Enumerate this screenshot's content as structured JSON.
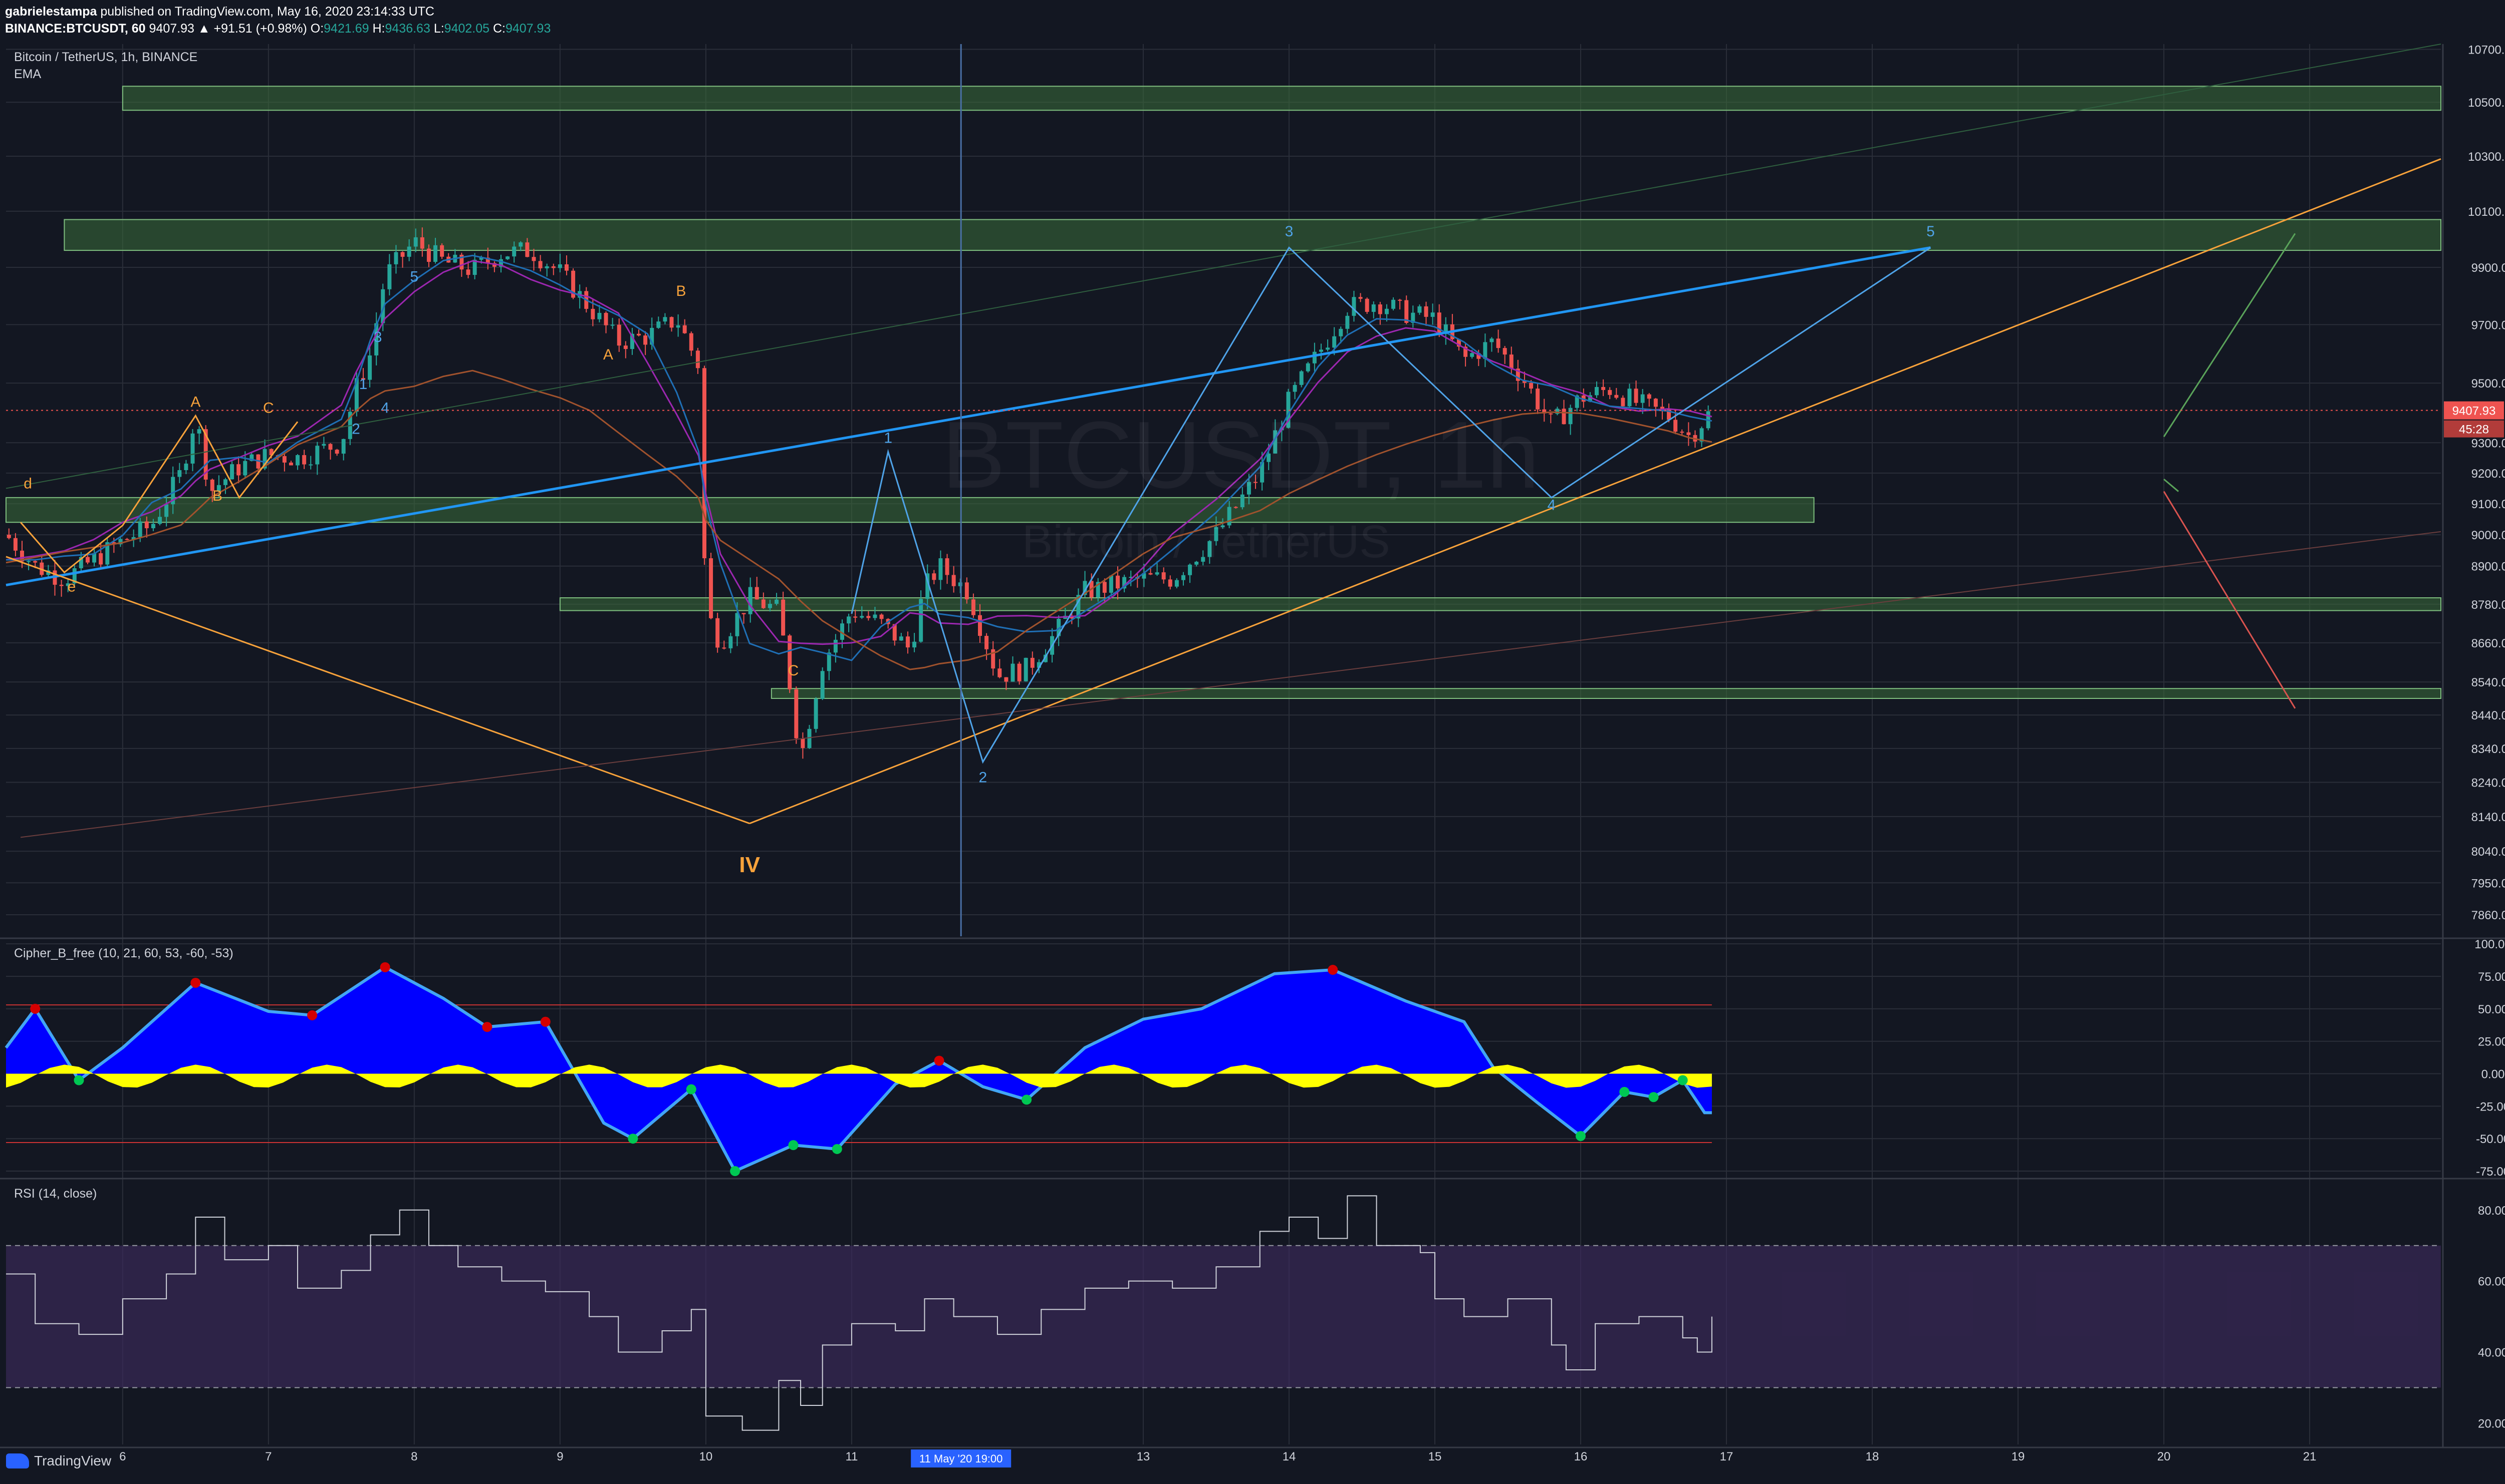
{
  "header": {
    "author": "gabrielestampa",
    "published_text": "published on TradingView.com, May 16, 2020 23:14:33 UTC",
    "symbol_line": "BINANCE:BTCUSDT, 60",
    "change": "9407.93 ▲ +91.51 (+0.98%)",
    "o_label": "O:",
    "o_value": "9421.69",
    "h_label": "H:",
    "h_value": "9436.63",
    "l_label": "L:",
    "l_value": "9402.05",
    "c_label": "C:",
    "c_value": "9407.93"
  },
  "main_pane": {
    "title": "Bitcoin / TetherUS, 1h, BINANCE",
    "indicator": "EMA",
    "watermark_symbol": "BTCUSDT, 1h",
    "watermark_name": "Bitcoin / TetherUS",
    "last_price": "9407.93",
    "countdown": "45:28"
  },
  "cipher_pane": {
    "title": "Cipher_B_free (10, 21, 60, 53, -60, -53)"
  },
  "rsi_pane": {
    "title": "RSI (14, close)"
  },
  "time_cursor": "11 May '20   19:00",
  "footer": {
    "brand": "TradingView"
  },
  "colors": {
    "background": "#131722",
    "grid": "#2a2e39",
    "candle_up": "#26a69a",
    "candle_down": "#ef5350",
    "zone_fill": "#3b6e3b",
    "wave_orange": "#f7a23b",
    "wave_blue": "#4fa3e8",
    "wave_blue_bright": "#2196f3",
    "ema_purple": "#9c27b0",
    "ema_brown": "#a0522d",
    "cipher_blue": "#0000ff",
    "cipher_yellow": "#ffff00",
    "rsi_band": "#3c2a5c"
  },
  "chart_data": [
    {
      "type": "candlestick",
      "title": "Bitcoin / TetherUS, 1h, BINANCE",
      "x_tick_labels": [
        "6",
        "7",
        "8",
        "9",
        "10",
        "11",
        "13",
        "14",
        "15",
        "16",
        "17",
        "18",
        "19",
        "20",
        "21"
      ],
      "x_domain_days": [
        5.2,
        21.9
      ],
      "y_tick_labels": [
        "10700.00",
        "10500.00",
        "10300.00",
        "10100.00",
        "9900.00",
        "9700.00",
        "9500.00",
        "9300.00",
        "9200.00",
        "9100.00",
        "9000.00",
        "8900.00",
        "8780.00",
        "8660.00",
        "8540.00",
        "8440.00",
        "8340.00",
        "8240.00",
        "8140.00",
        "8040.00",
        "7950.00",
        "7860.00"
      ],
      "ylim": [
        7800,
        10720
      ],
      "y_scale": "log",
      "grid": true,
      "close_series": [
        {
          "day": 5.2,
          "price": 9000
        },
        {
          "day": 5.4,
          "price": 8900
        },
        {
          "day": 5.6,
          "price": 8860
        },
        {
          "day": 5.8,
          "price": 8920
        },
        {
          "day": 6.0,
          "price": 8980
        },
        {
          "day": 6.2,
          "price": 9030
        },
        {
          "day": 6.4,
          "price": 9200
        },
        {
          "day": 6.5,
          "price": 9390
        },
        {
          "day": 6.6,
          "price": 9140
        },
        {
          "day": 6.8,
          "price": 9220
        },
        {
          "day": 7.0,
          "price": 9260
        },
        {
          "day": 7.2,
          "price": 9250
        },
        {
          "day": 7.5,
          "price": 9300
        },
        {
          "day": 7.6,
          "price": 9480
        },
        {
          "day": 7.7,
          "price": 9600
        },
        {
          "day": 7.8,
          "price": 9870
        },
        {
          "day": 8.0,
          "price": 9990
        },
        {
          "day": 8.2,
          "price": 9920
        },
        {
          "day": 8.4,
          "price": 9890
        },
        {
          "day": 8.6,
          "price": 9950
        },
        {
          "day": 8.8,
          "price": 9960
        },
        {
          "day": 9.0,
          "price": 9880
        },
        {
          "day": 9.2,
          "price": 9760
        },
        {
          "day": 9.4,
          "price": 9640
        },
        {
          "day": 9.6,
          "price": 9660
        },
        {
          "day": 9.8,
          "price": 9720
        },
        {
          "day": 9.95,
          "price": 9560
        },
        {
          "day": 10.0,
          "price": 8760
        },
        {
          "day": 10.1,
          "price": 8660
        },
        {
          "day": 10.3,
          "price": 8800
        },
        {
          "day": 10.5,
          "price": 8760
        },
        {
          "day": 10.65,
          "price": 8310
        },
        {
          "day": 10.8,
          "price": 8600
        },
        {
          "day": 11.0,
          "price": 8760
        },
        {
          "day": 11.2,
          "price": 8720
        },
        {
          "day": 11.4,
          "price": 8640
        },
        {
          "day": 11.5,
          "price": 8830
        },
        {
          "day": 11.6,
          "price": 8900
        },
        {
          "day": 11.8,
          "price": 8820
        },
        {
          "day": 12.0,
          "price": 8560
        },
        {
          "day": 12.2,
          "price": 8580
        },
        {
          "day": 12.4,
          "price": 8690
        },
        {
          "day": 12.6,
          "price": 8820
        },
        {
          "day": 12.8,
          "price": 8840
        },
        {
          "day": 13.0,
          "price": 8860
        },
        {
          "day": 13.2,
          "price": 8860
        },
        {
          "day": 13.5,
          "price": 9000
        },
        {
          "day": 13.8,
          "price": 9200
        },
        {
          "day": 14.0,
          "price": 9440
        },
        {
          "day": 14.2,
          "price": 9600
        },
        {
          "day": 14.4,
          "price": 9760
        },
        {
          "day": 14.6,
          "price": 9780
        },
        {
          "day": 14.8,
          "price": 9740
        },
        {
          "day": 15.0,
          "price": 9720
        },
        {
          "day": 15.2,
          "price": 9580
        },
        {
          "day": 15.4,
          "price": 9640
        },
        {
          "day": 15.6,
          "price": 9520
        },
        {
          "day": 15.8,
          "price": 9360
        },
        {
          "day": 16.0,
          "price": 9450
        },
        {
          "day": 16.2,
          "price": 9480
        },
        {
          "day": 16.4,
          "price": 9430
        },
        {
          "day": 16.6,
          "price": 9390
        },
        {
          "day": 16.75,
          "price": 9320
        },
        {
          "day": 16.9,
          "price": 9408
        }
      ],
      "horizontal_zones": [
        {
          "from_day": 6.0,
          "to_day": 21.9,
          "low": 10470,
          "high": 10560
        },
        {
          "from_day": 5.6,
          "to_day": 21.9,
          "low": 9960,
          "high": 10070
        },
        {
          "from_day": 5.2,
          "to_day": 17.6,
          "low": 9040,
          "high": 9120
        },
        {
          "from_day": 9.0,
          "to_day": 21.9,
          "low": 8760,
          "high": 8800
        },
        {
          "from_day": 10.45,
          "to_day": 21.9,
          "low": 8490,
          "high": 8520
        }
      ],
      "annotations": [
        "d",
        "e",
        "A",
        "B",
        "C",
        "1",
        "2",
        "3",
        "4",
        "5",
        "A",
        "B",
        "C",
        "IV",
        "1",
        "2",
        "3",
        "4",
        "5"
      ]
    },
    {
      "type": "area",
      "title": "Cipher_B_free (10, 21, 60, 53, -60, -53)",
      "y_tick_labels": [
        "100.00",
        "75.00",
        "50.00",
        "25.00",
        "0.00",
        "-25.00",
        "-50.00",
        "-75.00"
      ],
      "ylim": [
        -80,
        102
      ],
      "wave": [
        {
          "day": 5.2,
          "value": 20
        },
        {
          "day": 5.4,
          "value": 50
        },
        {
          "day": 5.7,
          "value": -5
        },
        {
          "day": 6.0,
          "value": 20
        },
        {
          "day": 6.5,
          "value": 70
        },
        {
          "day": 7.0,
          "value": 48
        },
        {
          "day": 7.3,
          "value": 45
        },
        {
          "day": 7.8,
          "value": 82
        },
        {
          "day": 8.2,
          "value": 58
        },
        {
          "day": 8.5,
          "value": 36
        },
        {
          "day": 8.9,
          "value": 40
        },
        {
          "day": 9.3,
          "value": -38
        },
        {
          "day": 9.5,
          "value": -50
        },
        {
          "day": 9.9,
          "value": -12
        },
        {
          "day": 10.2,
          "value": -75
        },
        {
          "day": 10.6,
          "value": -55
        },
        {
          "day": 10.9,
          "value": -58
        },
        {
          "day": 11.3,
          "value": -8
        },
        {
          "day": 11.6,
          "value": 10
        },
        {
          "day": 11.9,
          "value": -10
        },
        {
          "day": 12.2,
          "value": -20
        },
        {
          "day": 12.6,
          "value": 20
        },
        {
          "day": 13.0,
          "value": 42
        },
        {
          "day": 13.4,
          "value": 50
        },
        {
          "day": 13.9,
          "value": 77
        },
        {
          "day": 14.3,
          "value": 80
        },
        {
          "day": 14.8,
          "value": 56
        },
        {
          "day": 15.2,
          "value": 40
        },
        {
          "day": 15.4,
          "value": 5
        },
        {
          "day": 15.7,
          "value": -22
        },
        {
          "day": 16.0,
          "value": -48
        },
        {
          "day": 16.3,
          "value": -14
        },
        {
          "day": 16.5,
          "value": -18
        },
        {
          "day": 16.7,
          "value": -5
        },
        {
          "day": 16.85,
          "value": -30
        },
        {
          "day": 16.9,
          "value": -30
        }
      ],
      "overbought": 53,
      "oversold": -53
    },
    {
      "type": "line",
      "title": "RSI (14, close)",
      "y_tick_labels": [
        "80.00",
        "60.00",
        "40.00",
        "20.00"
      ],
      "ylim": [
        14,
        88
      ],
      "upper_band": 70,
      "lower_band": 30,
      "values": [
        {
          "day": 5.2,
          "value": 62
        },
        {
          "day": 5.4,
          "value": 48
        },
        {
          "day": 5.7,
          "value": 45
        },
        {
          "day": 6.0,
          "value": 55
        },
        {
          "day": 6.3,
          "value": 62
        },
        {
          "day": 6.5,
          "value": 78
        },
        {
          "day": 6.7,
          "value": 66
        },
        {
          "day": 7.0,
          "value": 70
        },
        {
          "day": 7.2,
          "value": 58
        },
        {
          "day": 7.5,
          "value": 63
        },
        {
          "day": 7.7,
          "value": 73
        },
        {
          "day": 7.9,
          "value": 80
        },
        {
          "day": 8.1,
          "value": 70
        },
        {
          "day": 8.3,
          "value": 64
        },
        {
          "day": 8.6,
          "value": 60
        },
        {
          "day": 8.9,
          "value": 57
        },
        {
          "day": 9.2,
          "value": 50
        },
        {
          "day": 9.4,
          "value": 40
        },
        {
          "day": 9.7,
          "value": 46
        },
        {
          "day": 9.9,
          "value": 52
        },
        {
          "day": 10.0,
          "value": 22
        },
        {
          "day": 10.25,
          "value": 18
        },
        {
          "day": 10.5,
          "value": 32
        },
        {
          "day": 10.65,
          "value": 25
        },
        {
          "day": 10.8,
          "value": 42
        },
        {
          "day": 11.0,
          "value": 48
        },
        {
          "day": 11.3,
          "value": 46
        },
        {
          "day": 11.5,
          "value": 55
        },
        {
          "day": 11.7,
          "value": 50
        },
        {
          "day": 12.0,
          "value": 45
        },
        {
          "day": 12.3,
          "value": 52
        },
        {
          "day": 12.6,
          "value": 58
        },
        {
          "day": 12.9,
          "value": 60
        },
        {
          "day": 13.2,
          "value": 58
        },
        {
          "day": 13.5,
          "value": 64
        },
        {
          "day": 13.8,
          "value": 74
        },
        {
          "day": 14.0,
          "value": 78
        },
        {
          "day": 14.2,
          "value": 72
        },
        {
          "day": 14.4,
          "value": 84
        },
        {
          "day": 14.6,
          "value": 70
        },
        {
          "day": 14.9,
          "value": 68
        },
        {
          "day": 15.0,
          "value": 55
        },
        {
          "day": 15.2,
          "value": 50
        },
        {
          "day": 15.5,
          "value": 55
        },
        {
          "day": 15.8,
          "value": 42
        },
        {
          "day": 15.9,
          "value": 35
        },
        {
          "day": 16.1,
          "value": 48
        },
        {
          "day": 16.4,
          "value": 50
        },
        {
          "day": 16.7,
          "value": 44
        },
        {
          "day": 16.8,
          "value": 40
        },
        {
          "day": 16.9,
          "value": 50
        }
      ]
    }
  ]
}
